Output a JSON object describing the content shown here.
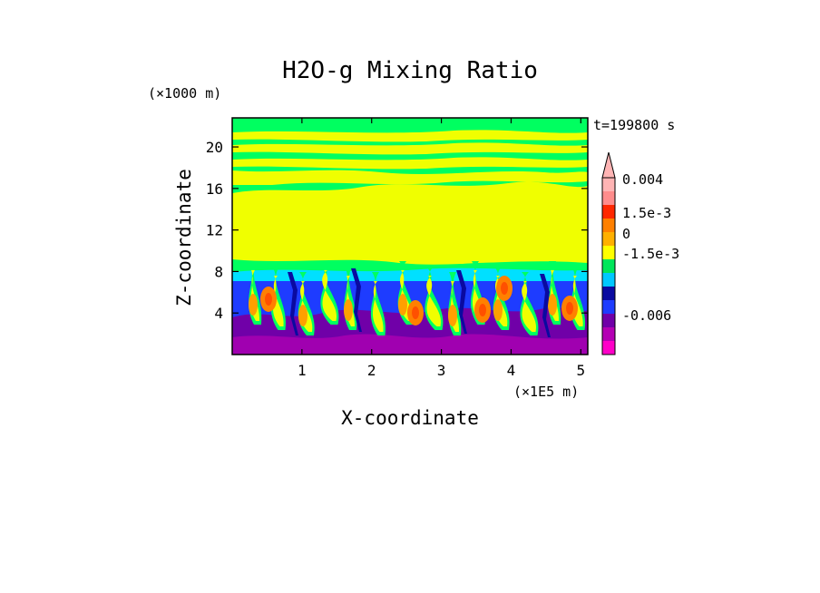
{
  "chart_data": {
    "type": "heatmap",
    "title": "H2O-g Mixing Ratio",
    "time_label": "t=199800 s",
    "xlabel": "X-coordinate",
    "ylabel": "Z-coordinate",
    "x_unit": "(×1E5 m)",
    "y_unit": "(×1000 m)",
    "xlim": [
      0,
      5.1
    ],
    "ylim": [
      0,
      22.8
    ],
    "x_ticks": [
      1,
      2,
      3,
      4,
      5
    ],
    "y_ticks": [
      4,
      8,
      12,
      16,
      20
    ],
    "colorbar": {
      "colors": [
        "#ff00c8",
        "#b400b4",
        "#7000a8",
        "#1e3cff",
        "#0a0aa0",
        "#00c8ff",
        "#00e65a",
        "#ffff00",
        "#ffb000",
        "#ff8000",
        "#ff2800",
        "#ff8c8c",
        "#ffb4b4"
      ],
      "labels": [
        "-0.006",
        "-1.5e-3",
        "0",
        "1.5e-3",
        "0.004"
      ]
    },
    "layers": [
      {
        "name": "upper green band",
        "color": "#00ff60",
        "z_range": [
          16.5,
          22.8
        ]
      },
      {
        "name": "upper yellow band",
        "color": "#f0ff00",
        "z_range": [
          10,
          16.5
        ]
      },
      {
        "name": "lower mixed region",
        "z_range": [
          0,
          9
        ]
      }
    ]
  }
}
